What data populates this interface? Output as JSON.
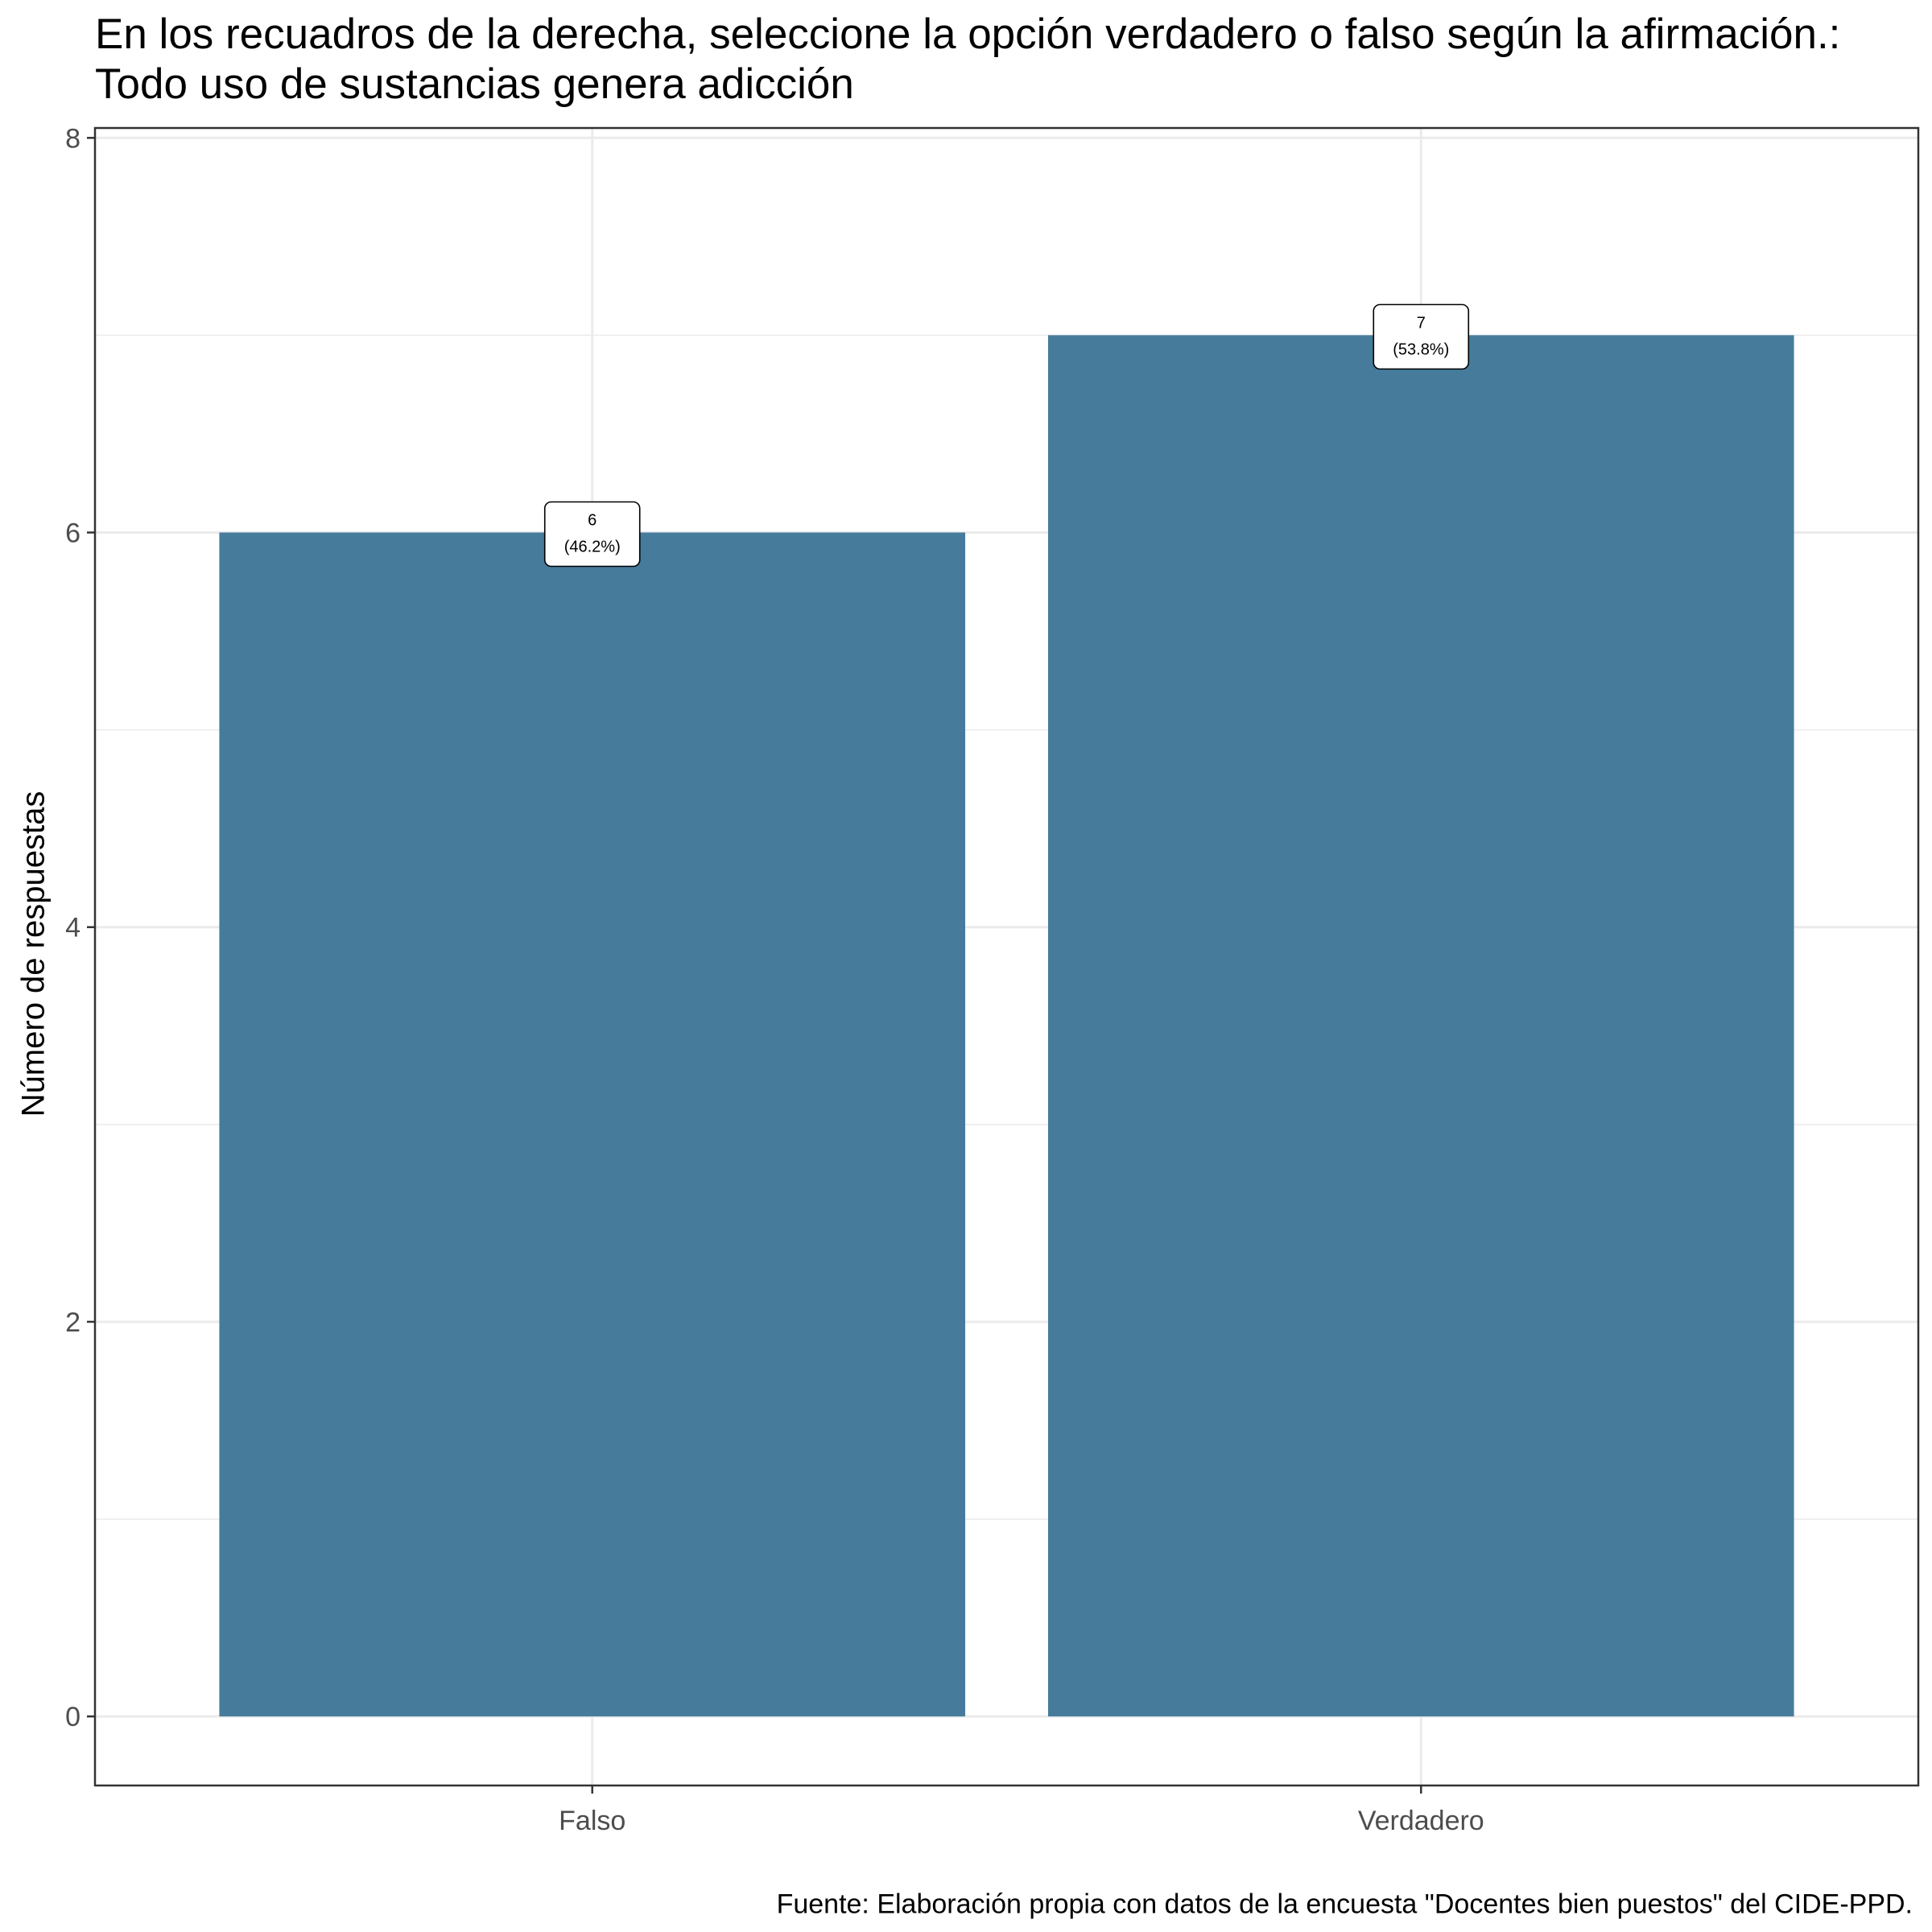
{
  "chart_data": {
    "type": "bar",
    "title": "En los recuadros de la derecha, seleccione la opción verdadero o falso según la afirmación.: Todo uso de sustancias genera adicción",
    "xlabel": "",
    "ylabel": "Número de respuestas",
    "caption": "Fuente: Elaboración propia con datos de la encuesta \"Docentes bien puestos\" del CIDE-PPD.",
    "categories": [
      "Falso",
      "Verdadero"
    ],
    "values": [
      6,
      7
    ],
    "data_labels": [
      [
        "6",
        "(46.2%)"
      ],
      [
        "7",
        "(53.8%)"
      ]
    ],
    "yticks": [
      0,
      2,
      4,
      6,
      8
    ],
    "ylim": [
      -0.35,
      8.05
    ],
    "grid": true,
    "legend": "none",
    "bar_color": "#467B9C"
  }
}
